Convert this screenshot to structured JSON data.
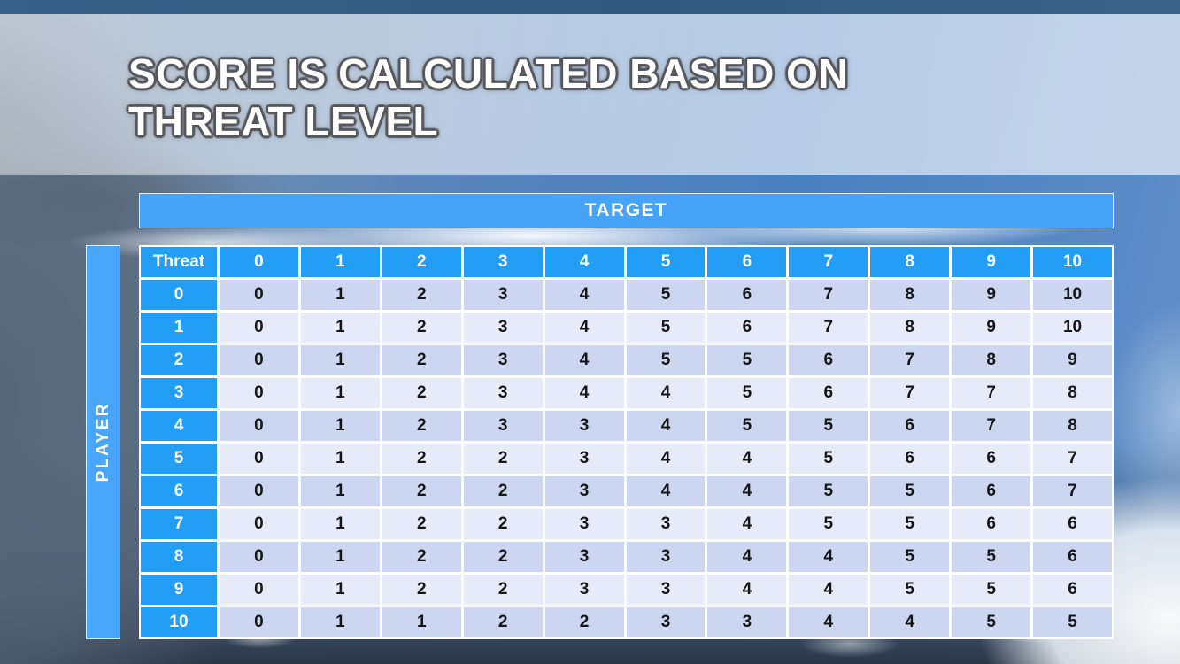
{
  "slide_title": {
    "line1": "SCORE IS CALCULATED BASED ON",
    "line2": "THREAT LEVEL"
  },
  "axes": {
    "column_banner": "TARGET",
    "row_banner": "PLAYER"
  },
  "chart_data": {
    "type": "table",
    "title": "SCORE IS CALCULATED BASED ON THREAT LEVEL",
    "corner_label": "Threat",
    "column_axis": "TARGET",
    "row_axis": "PLAYER",
    "column_headers": [
      "0",
      "1",
      "2",
      "3",
      "4",
      "5",
      "6",
      "7",
      "8",
      "9",
      "10"
    ],
    "row_headers": [
      "0",
      "1",
      "2",
      "3",
      "4",
      "5",
      "6",
      "7",
      "8",
      "9",
      "10"
    ],
    "rows": [
      [
        0,
        1,
        2,
        3,
        4,
        5,
        6,
        7,
        8,
        9,
        10
      ],
      [
        0,
        1,
        2,
        3,
        4,
        5,
        6,
        7,
        8,
        9,
        10
      ],
      [
        0,
        1,
        2,
        3,
        4,
        5,
        5,
        6,
        7,
        8,
        9
      ],
      [
        0,
        1,
        2,
        3,
        4,
        4,
        5,
        6,
        7,
        7,
        8
      ],
      [
        0,
        1,
        2,
        3,
        3,
        4,
        5,
        5,
        6,
        7,
        8
      ],
      [
        0,
        1,
        2,
        2,
        3,
        4,
        4,
        5,
        6,
        6,
        7
      ],
      [
        0,
        1,
        2,
        2,
        3,
        4,
        4,
        5,
        5,
        6,
        7
      ],
      [
        0,
        1,
        2,
        2,
        3,
        3,
        4,
        5,
        5,
        6,
        6
      ],
      [
        0,
        1,
        2,
        2,
        3,
        3,
        4,
        4,
        5,
        5,
        6
      ],
      [
        0,
        1,
        2,
        2,
        3,
        3,
        4,
        4,
        5,
        5,
        6
      ],
      [
        0,
        1,
        1,
        2,
        2,
        3,
        3,
        4,
        4,
        5,
        5
      ]
    ]
  },
  "colors": {
    "banner_blue": "#45a4f8",
    "header_cell_blue": "#229ef6",
    "row_even": "#ccd6f1",
    "row_odd": "#e7ebf9",
    "top_strip": "#2e5a80",
    "title_text": "#ffffff",
    "body_text": "#161616"
  }
}
